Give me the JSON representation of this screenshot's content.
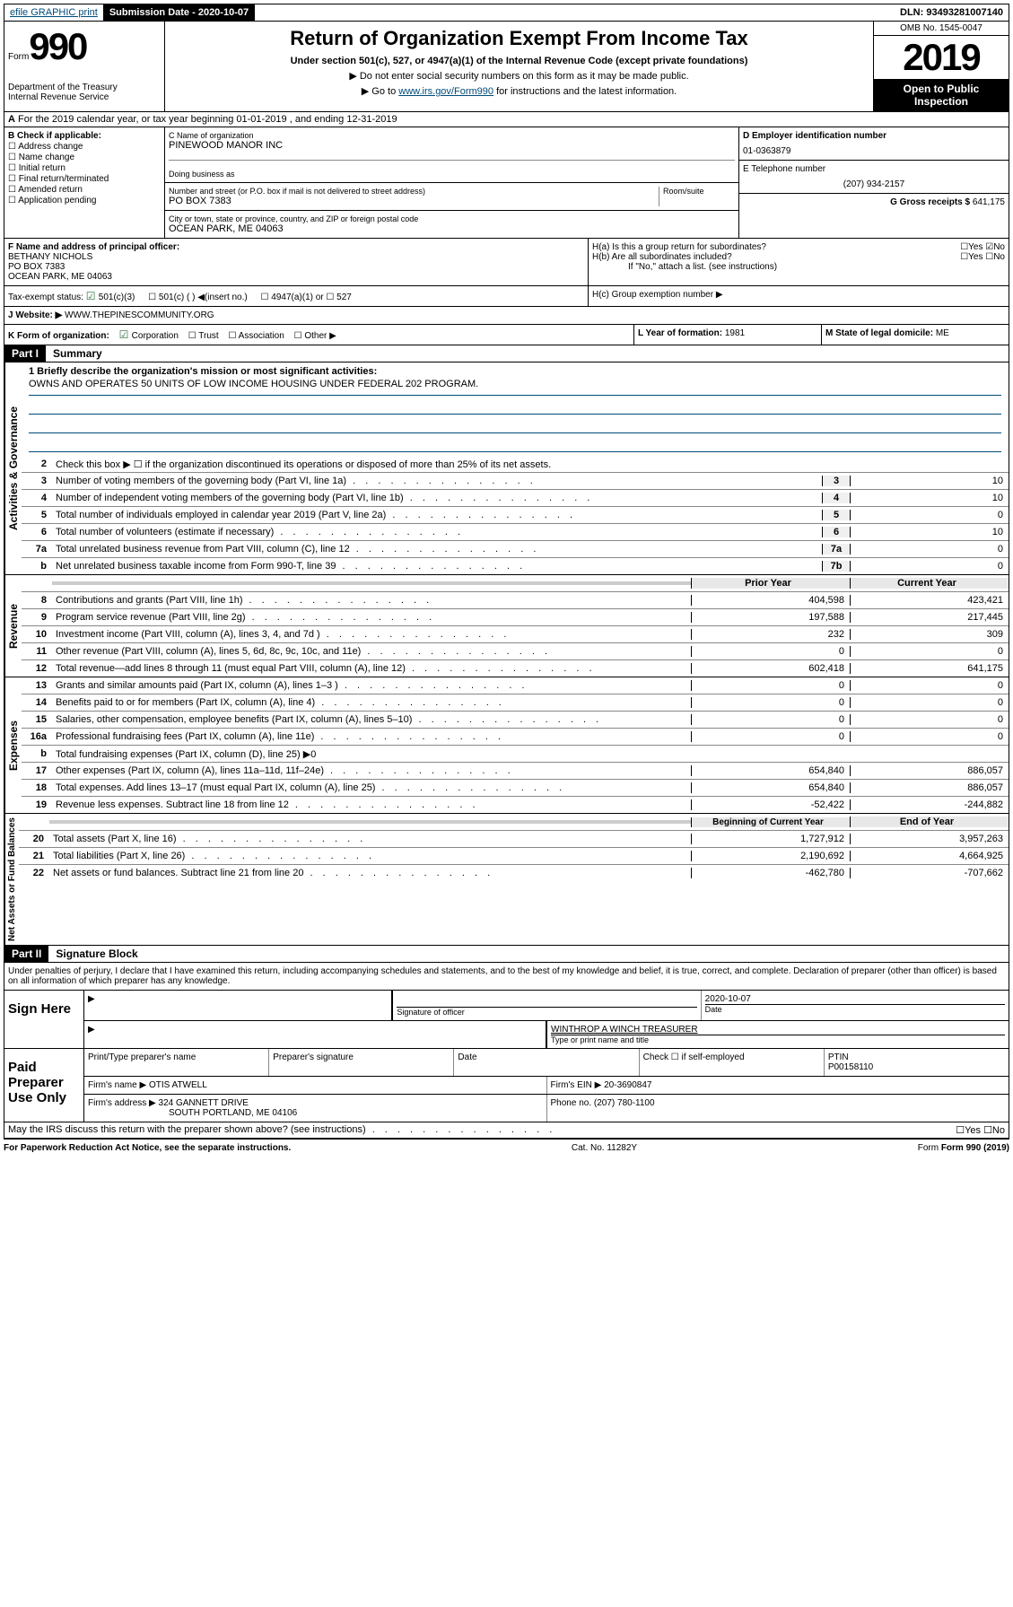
{
  "topbar": {
    "efile": "efile GRAPHIC print",
    "sub_label": "Submission Date - 2020-10-07",
    "dln": "DLN: 93493281007140"
  },
  "header": {
    "form_word": "Form",
    "form_no": "990",
    "dept": "Department of the Treasury\nInternal Revenue Service",
    "title": "Return of Organization Exempt From Income Tax",
    "subtitle": "Under section 501(c), 527, or 4947(a)(1) of the Internal Revenue Code (except private foundations)",
    "inst1": "Do not enter social security numbers on this form as it may be made public.",
    "inst2_pre": "Go to ",
    "inst2_link": "www.irs.gov/Form990",
    "inst2_post": " for instructions and the latest information.",
    "omb": "OMB No. 1545-0047",
    "year": "2019",
    "open": "Open to Public Inspection"
  },
  "sectionA": "For the 2019 calendar year, or tax year beginning 01-01-2019   , and ending 12-31-2019",
  "colB": {
    "header": "B Check if applicable:",
    "items": [
      "Address change",
      "Name change",
      "Initial return",
      "Final return/terminated",
      "Amended return",
      "Application pending"
    ]
  },
  "colC": {
    "name_label": "C Name of organization",
    "name": "PINEWOOD MANOR INC",
    "dba_label": "Doing business as",
    "addr_label": "Number and street (or P.O. box if mail is not delivered to street address)",
    "room_label": "Room/suite",
    "addr": "PO BOX 7383",
    "city_label": "City or town, state or province, country, and ZIP or foreign postal code",
    "city": "OCEAN PARK, ME  04063"
  },
  "colD": {
    "ein_label": "D Employer identification number",
    "ein": "01-0363879",
    "phone_label": "E Telephone number",
    "phone": "(207) 934-2157",
    "gross_label": "G Gross receipts $",
    "gross": "641,175"
  },
  "rowF": {
    "label": "F  Name and address of principal officer:",
    "name": "BETHANY NICHOLS",
    "addr1": "PO BOX 7383",
    "addr2": "OCEAN PARK, ME  04063"
  },
  "rowH": {
    "ha": "H(a)  Is this a group return for subordinates?",
    "ha_ans": "☐Yes ☑No",
    "hb": "H(b)  Are all subordinates included?",
    "hb_ans": "☐Yes ☐No",
    "hb_note": "If \"No,\" attach a list. (see instructions)",
    "hc": "H(c)  Group exemption number ▶"
  },
  "rowI": {
    "tax_label": "Tax-exempt status:",
    "c3": "501(c)(3)",
    "c_other": "501(c) (  ) ◀(insert no.)",
    "a1": "4947(a)(1) or",
    "s527": "527"
  },
  "rowJ": {
    "label": "J   Website: ▶",
    "val": "WWW.THEPINESCOMMUNITY.ORG"
  },
  "rowK": {
    "label": "K Form of organization:",
    "corp": "Corporation",
    "trust": "Trust",
    "assoc": "Association",
    "other": "Other ▶",
    "year_label": "L Year of formation:",
    "year": "1981",
    "state_label": "M State of legal domicile:",
    "state": "ME"
  },
  "part1": {
    "header": "Part I",
    "title": "Summary",
    "l1_label": "1  Briefly describe the organization's mission or most significant activities:",
    "l1_val": "OWNS AND OPERATES 50 UNITS OF LOW INCOME HOUSING UNDER FEDERAL 202 PROGRAM.",
    "l2": "Check this box ▶ ☐  if the organization discontinued its operations or disposed of more than 25% of its net assets.",
    "lines_ag": [
      {
        "n": "3",
        "d": "Number of voting members of the governing body (Part VI, line 1a)",
        "b": "3",
        "v": "10"
      },
      {
        "n": "4",
        "d": "Number of independent voting members of the governing body (Part VI, line 1b)",
        "b": "4",
        "v": "10"
      },
      {
        "n": "5",
        "d": "Total number of individuals employed in calendar year 2019 (Part V, line 2a)",
        "b": "5",
        "v": "0"
      },
      {
        "n": "6",
        "d": "Total number of volunteers (estimate if necessary)",
        "b": "6",
        "v": "10"
      },
      {
        "n": "7a",
        "d": "Total unrelated business revenue from Part VIII, column (C), line 12",
        "b": "7a",
        "v": "0"
      },
      {
        "n": "b",
        "d": "Net unrelated business taxable income from Form 990-T, line 39",
        "b": "7b",
        "v": "0"
      }
    ],
    "col_prior": "Prior Year",
    "col_current": "Current Year",
    "revenue": [
      {
        "n": "8",
        "d": "Contributions and grants (Part VIII, line 1h)",
        "p": "404,598",
        "c": "423,421"
      },
      {
        "n": "9",
        "d": "Program service revenue (Part VIII, line 2g)",
        "p": "197,588",
        "c": "217,445"
      },
      {
        "n": "10",
        "d": "Investment income (Part VIII, column (A), lines 3, 4, and 7d )",
        "p": "232",
        "c": "309"
      },
      {
        "n": "11",
        "d": "Other revenue (Part VIII, column (A), lines 5, 6d, 8c, 9c, 10c, and 11e)",
        "p": "0",
        "c": "0"
      },
      {
        "n": "12",
        "d": "Total revenue—add lines 8 through 11 (must equal Part VIII, column (A), line 12)",
        "p": "602,418",
        "c": "641,175"
      }
    ],
    "expenses": [
      {
        "n": "13",
        "d": "Grants and similar amounts paid (Part IX, column (A), lines 1–3 )",
        "p": "0",
        "c": "0"
      },
      {
        "n": "14",
        "d": "Benefits paid to or for members (Part IX, column (A), line 4)",
        "p": "0",
        "c": "0"
      },
      {
        "n": "15",
        "d": "Salaries, other compensation, employee benefits (Part IX, column (A), lines 5–10)",
        "p": "0",
        "c": "0"
      },
      {
        "n": "16a",
        "d": "Professional fundraising fees (Part IX, column (A), line 11e)",
        "p": "0",
        "c": "0"
      },
      {
        "n": "b",
        "d": "Total fundraising expenses (Part IX, column (D), line 25) ▶0",
        "p": "",
        "c": "",
        "shaded": true
      },
      {
        "n": "17",
        "d": "Other expenses (Part IX, column (A), lines 11a–11d, 11f–24e)",
        "p": "654,840",
        "c": "886,057"
      },
      {
        "n": "18",
        "d": "Total expenses. Add lines 13–17 (must equal Part IX, column (A), line 25)",
        "p": "654,840",
        "c": "886,057"
      },
      {
        "n": "19",
        "d": "Revenue less expenses. Subtract line 18 from line 12",
        "p": "-52,422",
        "c": "-244,882"
      }
    ],
    "col_begin": "Beginning of Current Year",
    "col_end": "End of Year",
    "netassets": [
      {
        "n": "20",
        "d": "Total assets (Part X, line 16)",
        "p": "1,727,912",
        "c": "3,957,263"
      },
      {
        "n": "21",
        "d": "Total liabilities (Part X, line 26)",
        "p": "2,190,692",
        "c": "4,664,925"
      },
      {
        "n": "22",
        "d": "Net assets or fund balances. Subtract line 21 from line 20",
        "p": "-462,780",
        "c": "-707,662"
      }
    ],
    "vlabels": {
      "ag": "Activities & Governance",
      "rev": "Revenue",
      "exp": "Expenses",
      "na": "Net Assets or Fund Balances"
    }
  },
  "part2": {
    "header": "Part II",
    "title": "Signature Block",
    "perjury": "Under penalties of perjury, I declare that I have examined this return, including accompanying schedules and statements, and to the best of my knowledge and belief, it is true, correct, and complete. Declaration of preparer (other than officer) is based on all information of which preparer has any knowledge.",
    "sign_here": "Sign Here",
    "sig_officer": "Signature of officer",
    "sig_date": "2020-10-07",
    "date_label": "Date",
    "name_title": "WINTHROP A WINCH  TREASURER",
    "name_title_label": "Type or print name and title",
    "paid": "Paid Preparer Use Only",
    "prep_name_label": "Print/Type preparer's name",
    "prep_sig_label": "Preparer's signature",
    "prep_date_label": "Date",
    "self_emp": "Check ☐ if self-employed",
    "ptin_label": "PTIN",
    "ptin": "P00158110",
    "firm_name_label": "Firm's name    ▶",
    "firm_name": "OTIS ATWELL",
    "firm_ein_label": "Firm's EIN ▶",
    "firm_ein": "20-3690847",
    "firm_addr_label": "Firm's address ▶",
    "firm_addr": "324 GANNETT DRIVE",
    "firm_city": "SOUTH PORTLAND, ME  04106",
    "firm_phone_label": "Phone no.",
    "firm_phone": "(207) 780-1100",
    "discuss": "May the IRS discuss this return with the preparer shown above? (see instructions)",
    "discuss_ans": "☐Yes   ☐No"
  },
  "footer": {
    "pra": "For Paperwork Reduction Act Notice, see the separate instructions.",
    "cat": "Cat. No. 11282Y",
    "form": "Form 990 (2019)"
  }
}
